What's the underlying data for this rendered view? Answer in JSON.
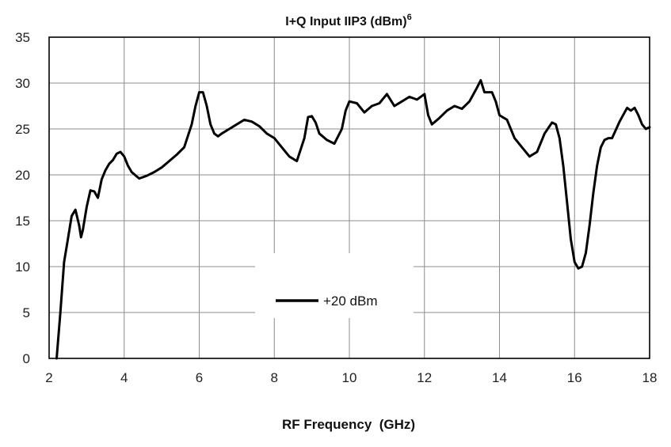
{
  "chart_data": {
    "type": "line",
    "title": "I+Q Input IIP3 (dBm)",
    "title_superscript": "6",
    "xlabel": "RF Frequency  (GHz)",
    "ylabel": "",
    "xlim": [
      2,
      18
    ],
    "ylim": [
      0,
      35
    ],
    "xticks": [
      2,
      4,
      6,
      8,
      10,
      12,
      14,
      16,
      18
    ],
    "yticks": [
      0,
      5,
      10,
      15,
      20,
      25,
      30,
      35
    ],
    "grid": true,
    "legend_position": "center",
    "series": [
      {
        "name": "+20 dBm",
        "color": "#000000",
        "x": [
          2.2,
          2.3,
          2.4,
          2.5,
          2.6,
          2.7,
          2.8,
          2.85,
          2.9,
          3.0,
          3.1,
          3.2,
          3.3,
          3.4,
          3.5,
          3.6,
          3.7,
          3.8,
          3.9,
          4.0,
          4.1,
          4.2,
          4.4,
          4.6,
          4.8,
          5.0,
          5.2,
          5.4,
          5.6,
          5.8,
          5.9,
          6.0,
          6.1,
          6.2,
          6.3,
          6.4,
          6.5,
          6.6,
          6.8,
          7.0,
          7.2,
          7.4,
          7.6,
          7.8,
          8.0,
          8.2,
          8.4,
          8.6,
          8.8,
          8.9,
          9.0,
          9.1,
          9.2,
          9.4,
          9.6,
          9.8,
          9.9,
          10.0,
          10.2,
          10.4,
          10.6,
          10.8,
          11.0,
          11.2,
          11.4,
          11.6,
          11.8,
          12.0,
          12.1,
          12.2,
          12.4,
          12.6,
          12.8,
          13.0,
          13.2,
          13.4,
          13.5,
          13.6,
          13.8,
          13.9,
          14.0,
          14.2,
          14.4,
          14.6,
          14.8,
          15.0,
          15.2,
          15.4,
          15.5,
          15.6,
          15.7,
          15.8,
          15.9,
          16.0,
          16.1,
          16.2,
          16.3,
          16.4,
          16.5,
          16.6,
          16.7,
          16.8,
          16.9,
          17.0,
          17.2,
          17.4,
          17.5,
          17.6,
          17.7,
          17.8,
          17.9,
          18.0
        ],
        "values": [
          0.0,
          5.0,
          10.5,
          13.0,
          15.5,
          16.2,
          14.5,
          13.2,
          14.0,
          16.5,
          18.3,
          18.2,
          17.5,
          19.5,
          20.5,
          21.2,
          21.6,
          22.3,
          22.5,
          22.0,
          21.0,
          20.3,
          19.6,
          19.9,
          20.3,
          20.8,
          21.5,
          22.2,
          23.0,
          25.5,
          27.5,
          29.0,
          29.0,
          27.5,
          25.5,
          24.5,
          24.2,
          24.5,
          25.0,
          25.5,
          26.0,
          25.8,
          25.3,
          24.5,
          24.0,
          23.0,
          22.0,
          21.5,
          24.0,
          26.3,
          26.4,
          25.7,
          24.5,
          23.8,
          23.4,
          25.0,
          27.0,
          28.0,
          27.8,
          26.8,
          27.5,
          27.8,
          28.8,
          27.5,
          28.0,
          28.5,
          28.2,
          28.8,
          26.5,
          25.5,
          26.2,
          27.0,
          27.5,
          27.2,
          28.0,
          29.5,
          30.3,
          29.0,
          29.0,
          28.0,
          26.5,
          26.0,
          24.0,
          23.0,
          22.0,
          22.5,
          24.5,
          25.7,
          25.5,
          24.0,
          21.0,
          17.0,
          13.0,
          10.5,
          9.8,
          10.0,
          11.5,
          14.5,
          18.0,
          21.0,
          23.0,
          23.8,
          24.0,
          24.0,
          25.8,
          27.3,
          27.0,
          27.3,
          26.5,
          25.5,
          25.0,
          25.2
        ]
      }
    ]
  }
}
